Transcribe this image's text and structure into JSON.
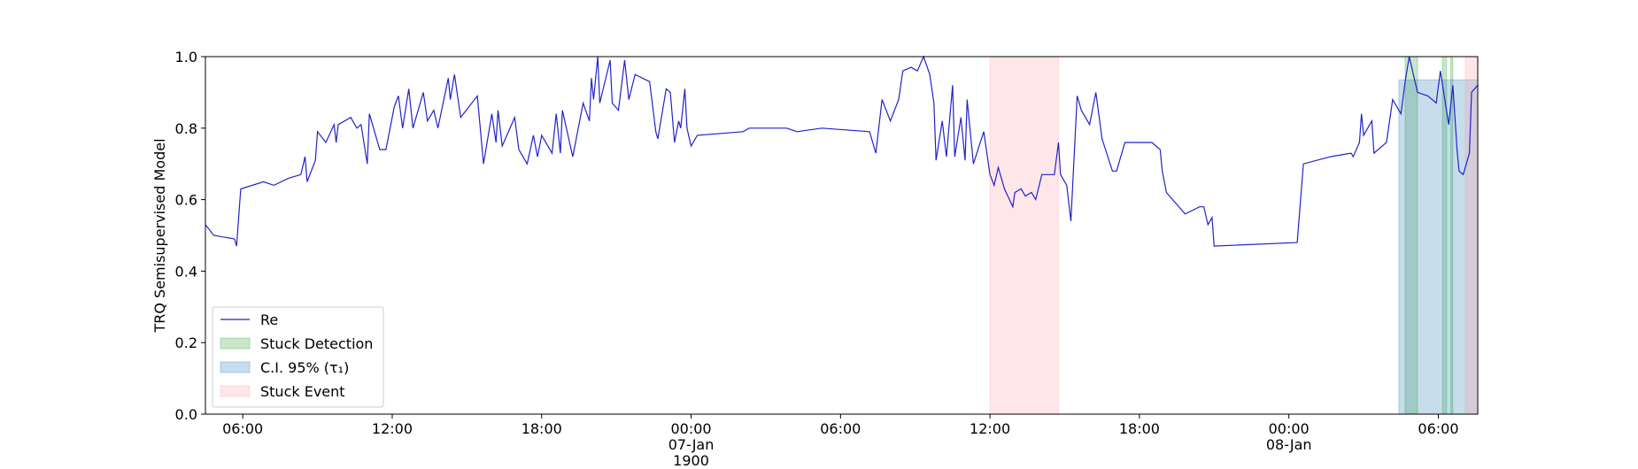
{
  "chart_data": {
    "type": "line",
    "ylabel": "TRQ Semisupervised Model",
    "xlim": [
      "1900-01-06T04:30",
      "1900-01-08T07:35"
    ],
    "ylim": [
      0,
      1
    ],
    "yticks": [
      {
        "value": 0,
        "label": "0.0"
      },
      0.2,
      0.4,
      0.6,
      0.8,
      {
        "value": 1,
        "label": "1.0"
      }
    ],
    "xticks": [
      {
        "value": "1900-01-06T06:00",
        "label": "06:00"
      },
      {
        "value": "1900-01-06T12:00",
        "label": "12:00"
      },
      {
        "value": "1900-01-06T18:00",
        "label": "18:00"
      },
      {
        "value": "1900-01-07T00:00",
        "label": "00:00\n07-Jan\n1900"
      },
      {
        "value": "1900-01-07T06:00",
        "label": "06:00"
      },
      {
        "value": "1900-01-07T12:00",
        "label": "12:00"
      },
      {
        "value": "1900-01-07T18:00",
        "label": "18:00"
      },
      {
        "value": "1900-01-08T00:00",
        "label": "00:00\n08-Jan"
      },
      {
        "value": "1900-01-08T06:00",
        "label": "06:00"
      }
    ],
    "legend": "lower left",
    "series": [
      {
        "name": "Re",
        "color": "#2222cc",
        "x": [
          "1900-01-06T04:30",
          "1900-01-06T04:50",
          "1900-01-06T05:40",
          "1900-01-06T05:45",
          "1900-01-06T05:55",
          "1900-01-06T06:50",
          "1900-01-06T07:15",
          "1900-01-06T07:50",
          "1900-01-06T08:20",
          "1900-01-06T08:30",
          "1900-01-06T08:35",
          "1900-01-06T08:55",
          "1900-01-06T09:00",
          "1900-01-06T09:20",
          "1900-01-06T09:40",
          "1900-01-06T09:45",
          "1900-01-06T09:50",
          "1900-01-06T10:20",
          "1900-01-06T10:35",
          "1900-01-06T10:45",
          "1900-01-06T11:00",
          "1900-01-06T11:05",
          "1900-01-06T11:30",
          "1900-01-06T11:45",
          "1900-01-06T12:05",
          "1900-01-06T12:15",
          "1900-01-06T12:25",
          "1900-01-06T12:40",
          "1900-01-06T12:50",
          "1900-01-06T13:15",
          "1900-01-06T13:25",
          "1900-01-06T13:40",
          "1900-01-06T13:50",
          "1900-01-06T14:15",
          "1900-01-06T14:20",
          "1900-01-06T14:30",
          "1900-01-06T14:45",
          "1900-01-06T15:25",
          "1900-01-06T15:40",
          "1900-01-06T16:00",
          "1900-01-06T16:10",
          "1900-01-06T16:15",
          "1900-01-06T16:25",
          "1900-01-06T16:55",
          "1900-01-06T17:05",
          "1900-01-06T17:25",
          "1900-01-06T17:40",
          "1900-01-06T17:50",
          "1900-01-06T18:00",
          "1900-01-06T18:25",
          "1900-01-06T18:35",
          "1900-01-06T18:45",
          "1900-01-06T18:50",
          "1900-01-06T19:15",
          "1900-01-06T19:40",
          "1900-01-06T19:55",
          "1900-01-06T20:00",
          "1900-01-06T20:05",
          "1900-01-06T20:15",
          "1900-01-06T20:20",
          "1900-01-06T20:45",
          "1900-01-06T20:50",
          "1900-01-06T21:05",
          "1900-01-06T21:20",
          "1900-01-06T21:30",
          "1900-01-06T21:45",
          "1900-01-06T22:20",
          "1900-01-06T22:35",
          "1900-01-06T22:40",
          "1900-01-06T23:00",
          "1900-01-06T23:10",
          "1900-01-06T23:20",
          "1900-01-06T23:30",
          "1900-01-06T23:35",
          "1900-01-06T23:45",
          "1900-01-06T23:50",
          "1900-01-07T00:00",
          "1900-01-07T00:15",
          "1900-01-07T02:05",
          "1900-01-07T02:20",
          "1900-01-07T03:50",
          "1900-01-07T04:15",
          "1900-01-07T05:15",
          "1900-01-07T07:10",
          "1900-01-07T07:25",
          "1900-01-07T07:40",
          "1900-01-07T08:00",
          "1900-01-07T08:20",
          "1900-01-07T08:30",
          "1900-01-07T08:50",
          "1900-01-07T09:05",
          "1900-01-07T09:20",
          "1900-01-07T09:35",
          "1900-01-07T09:45",
          "1900-01-07T09:50",
          "1900-01-07T10:05",
          "1900-01-07T10:15",
          "1900-01-07T10:30",
          "1900-01-07T10:35",
          "1900-01-07T10:50",
          "1900-01-07T11:00",
          "1900-01-07T11:05",
          "1900-01-07T11:20",
          "1900-01-07T11:45",
          "1900-01-07T12:00",
          "1900-01-07T12:10",
          "1900-01-07T12:20",
          "1900-01-07T12:35",
          "1900-01-07T12:55",
          "1900-01-07T13:00",
          "1900-01-07T13:15",
          "1900-01-07T13:25",
          "1900-01-07T13:40",
          "1900-01-07T13:50",
          "1900-01-07T14:05",
          "1900-01-07T14:35",
          "1900-01-07T14:45",
          "1900-01-07T14:50",
          "1900-01-07T15:05",
          "1900-01-07T15:15",
          "1900-01-07T15:30",
          "1900-01-07T15:40",
          "1900-01-07T16:00",
          "1900-01-07T16:15",
          "1900-01-07T16:30",
          "1900-01-07T16:55",
          "1900-01-07T17:05",
          "1900-01-07T17:25",
          "1900-01-07T18:30",
          "1900-01-07T18:50",
          "1900-01-07T18:55",
          "1900-01-07T19:05",
          "1900-01-07T19:20",
          "1900-01-07T19:50",
          "1900-01-07T20:25",
          "1900-01-07T20:35",
          "1900-01-07T20:45",
          "1900-01-07T20:55",
          "1900-01-07T21:00",
          "1900-01-08T00:20",
          "1900-01-08T00:35",
          "1900-01-08T01:40",
          "1900-01-08T02:30",
          "1900-01-08T02:35",
          "1900-01-08T02:50",
          "1900-01-08T02:55",
          "1900-01-08T03:00",
          "1900-01-08T03:20",
          "1900-01-08T03:25",
          "1900-01-08T03:55",
          "1900-01-08T04:10",
          "1900-01-08T04:30",
          "1900-01-08T04:40",
          "1900-01-08T04:50",
          "1900-01-08T05:10",
          "1900-01-08T05:35",
          "1900-01-08T05:55",
          "1900-01-08T06:05",
          "1900-01-08T06:25",
          "1900-01-08T06:35",
          "1900-01-08T06:45",
          "1900-01-08T06:50",
          "1900-01-08T07:00",
          "1900-01-08T07:15",
          "1900-01-08T07:20",
          "1900-01-08T07:35"
        ],
        "values": [
          0.53,
          0.5,
          0.49,
          0.47,
          0.63,
          0.65,
          0.64,
          0.66,
          0.67,
          0.72,
          0.65,
          0.71,
          0.79,
          0.76,
          0.81,
          0.76,
          0.81,
          0.83,
          0.8,
          0.81,
          0.7,
          0.84,
          0.74,
          0.74,
          0.86,
          0.89,
          0.8,
          0.91,
          0.8,
          0.9,
          0.82,
          0.85,
          0.8,
          0.94,
          0.88,
          0.95,
          0.83,
          0.89,
          0.7,
          0.84,
          0.76,
          0.85,
          0.75,
          0.83,
          0.74,
          0.7,
          0.78,
          0.72,
          0.78,
          0.73,
          0.84,
          0.73,
          0.85,
          0.72,
          0.87,
          0.82,
          0.94,
          0.88,
          1.0,
          0.87,
          0.99,
          0.87,
          0.85,
          0.99,
          0.88,
          0.95,
          0.93,
          0.79,
          0.77,
          0.91,
          0.9,
          0.76,
          0.82,
          0.8,
          0.91,
          0.8,
          0.75,
          0.78,
          0.79,
          0.8,
          0.8,
          0.79,
          0.8,
          0.79,
          0.73,
          0.88,
          0.82,
          0.88,
          0.96,
          0.97,
          0.96,
          1.0,
          0.95,
          0.87,
          0.71,
          0.82,
          0.72,
          0.92,
          0.72,
          0.83,
          0.71,
          0.88,
          0.7,
          0.79,
          0.67,
          0.64,
          0.69,
          0.63,
          0.58,
          0.62,
          0.63,
          0.61,
          0.62,
          0.6,
          0.67,
          0.67,
          0.76,
          0.67,
          0.64,
          0.54,
          0.89,
          0.85,
          0.81,
          0.9,
          0.77,
          0.68,
          0.68,
          0.76,
          0.76,
          0.74,
          0.68,
          0.62,
          0.6,
          0.56,
          0.58,
          0.58,
          0.53,
          0.55,
          0.47,
          0.48,
          0.7,
          0.72,
          0.73,
          0.72,
          0.76,
          0.84,
          0.78,
          0.82,
          0.73,
          0.76,
          0.88,
          0.84,
          0.93,
          1.0,
          0.9,
          0.89,
          0.87,
          0.96,
          0.81,
          0.92,
          0.74,
          0.68,
          0.67,
          0.73,
          0.9,
          0.92
        ]
      }
    ],
    "spans": [
      {
        "name": "Stuck Detection",
        "color": "#2ca02c",
        "ranges": [
          [
            "1900-01-08T04:40",
            "1900-01-08T05:10"
          ],
          [
            "1900-01-08T06:10",
            "1900-01-08T06:20"
          ],
          [
            "1900-01-08T06:30",
            "1900-01-08T06:35"
          ]
        ]
      },
      {
        "name": "C.I. 95% (τ₁)",
        "color": "#1f77b4",
        "ymax": 0.935,
        "ranges": [
          [
            "1900-01-08T04:25",
            "1900-01-08T07:35"
          ]
        ]
      },
      {
        "name": "Stuck Event",
        "color": "#ff9aa8",
        "ranges": [
          [
            "1900-01-07T12:00",
            "1900-01-07T14:45"
          ],
          [
            "1900-01-08T07:05",
            "1900-01-08T07:35"
          ]
        ]
      }
    ]
  }
}
